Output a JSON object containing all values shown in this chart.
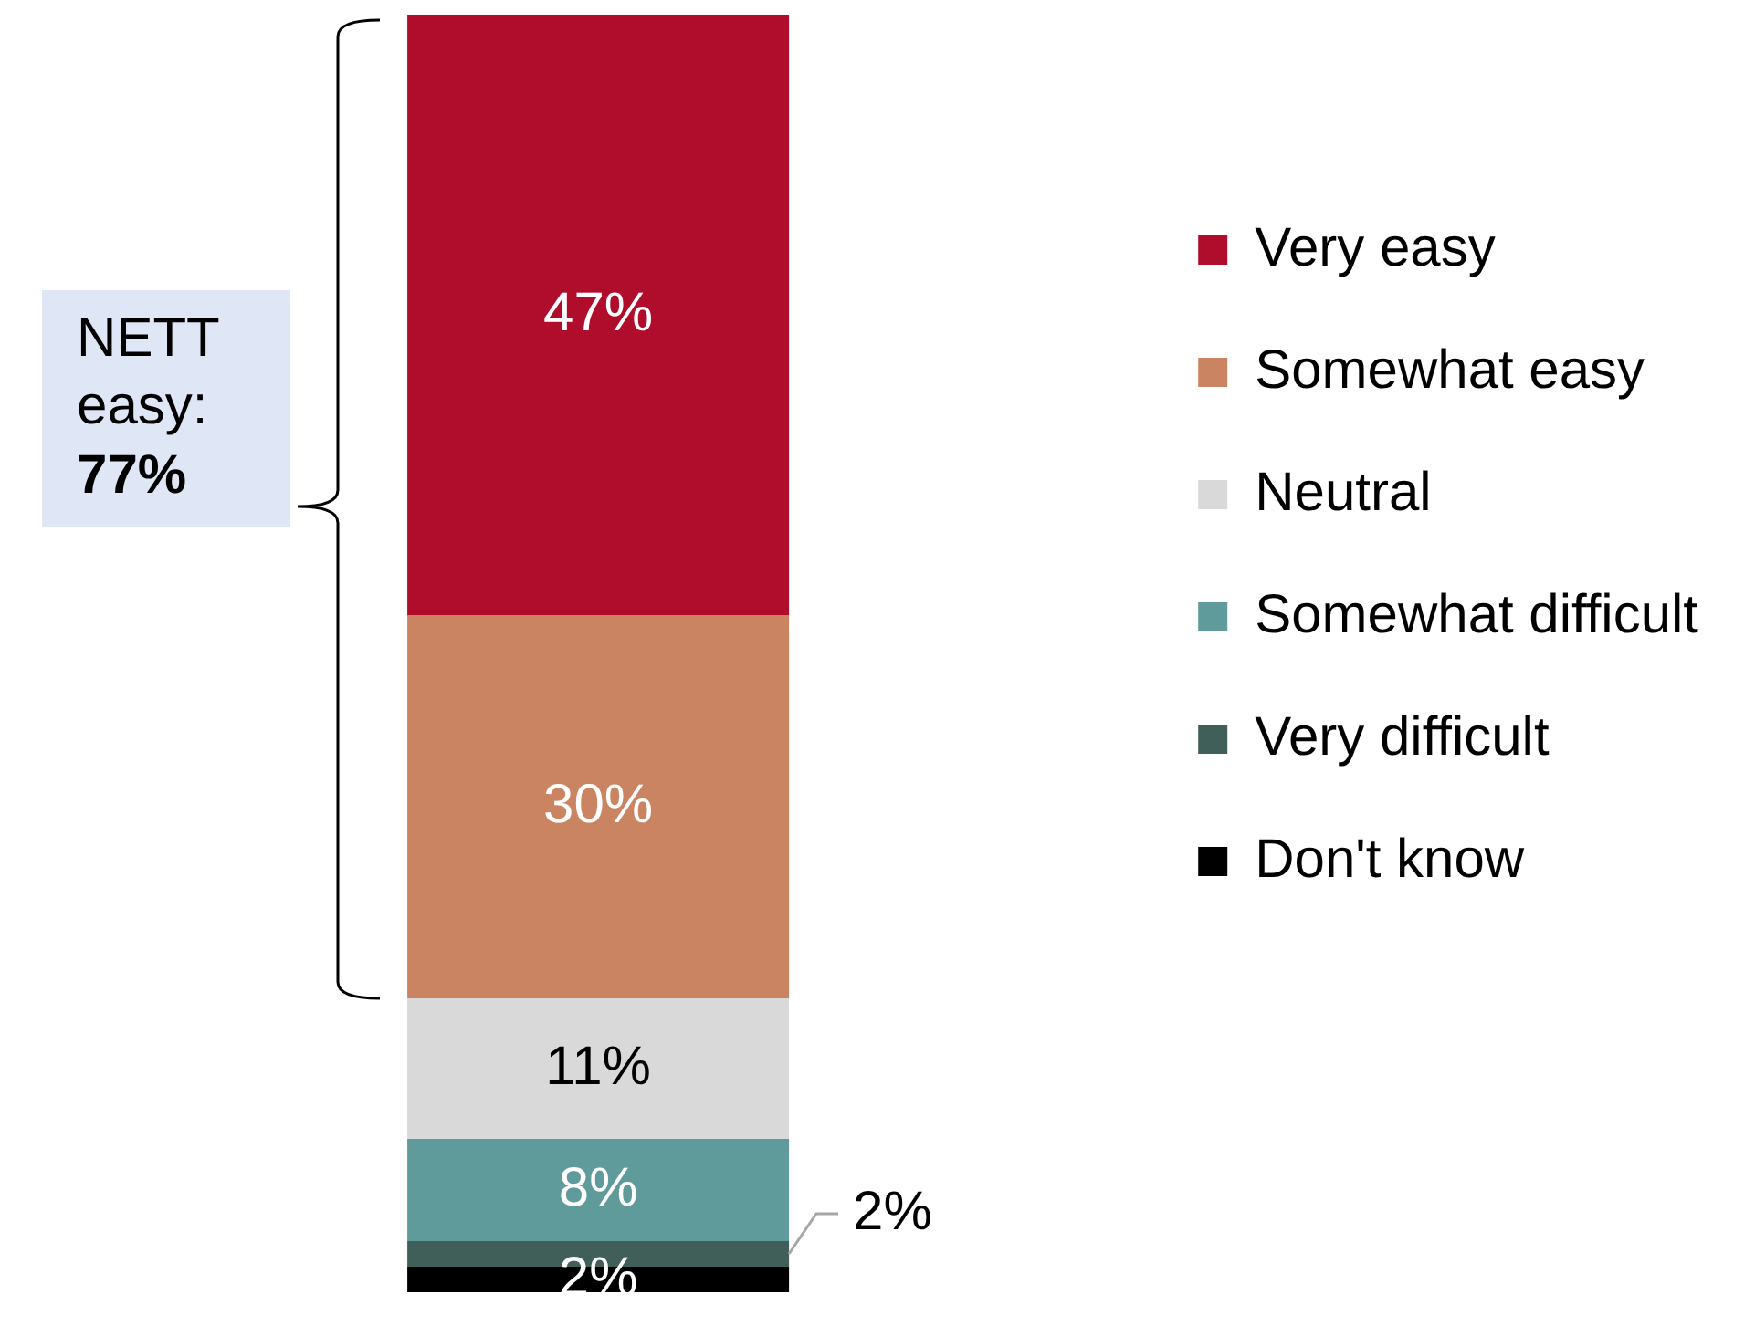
{
  "chart_data": {
    "type": "bar",
    "categories": [
      null
    ],
    "stacked": true,
    "series": [
      {
        "name": "Don't know",
        "color": "#000000",
        "values": [
          2
        ],
        "value_labels": [
          "2%"
        ]
      },
      {
        "name": "Very difficult",
        "color": "#405f58",
        "values": [
          2
        ],
        "value_labels": [
          "2%"
        ]
      },
      {
        "name": "Somewhat difficult",
        "color": "#5f9b9b",
        "values": [
          8
        ],
        "value_labels": [
          "8%"
        ]
      },
      {
        "name": "Neutral",
        "color": "#d9d9d9",
        "values": [
          11
        ],
        "value_labels": [
          "11%"
        ]
      },
      {
        "name": "Somewhat easy",
        "color": "#cb8462",
        "values": [
          30
        ],
        "value_labels": [
          "30%"
        ]
      },
      {
        "name": "Very easy",
        "color": "#b00c2b",
        "values": [
          47
        ],
        "value_labels": [
          "47%"
        ]
      }
    ],
    "tick_labels": false,
    "legend": "right",
    "annotations": [
      "NETT easy: 77%"
    ]
  }
}
